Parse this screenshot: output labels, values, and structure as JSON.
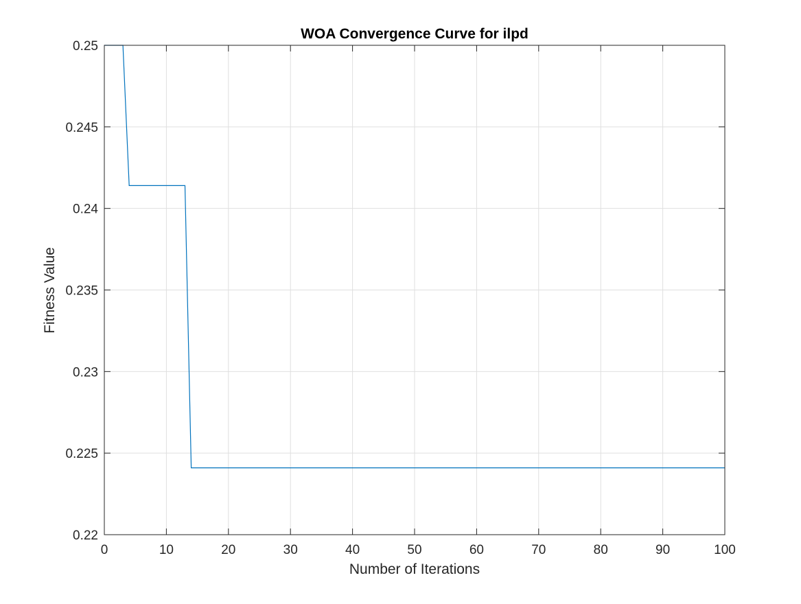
{
  "chart_data": {
    "type": "line",
    "title": "WOA Convergence Curve for ilpd",
    "xlabel": "Number of Iterations",
    "ylabel": "Fitness Value",
    "xlim": [
      0,
      100
    ],
    "ylim": [
      0.22,
      0.25
    ],
    "xticks": [
      0,
      10,
      20,
      30,
      40,
      50,
      60,
      70,
      80,
      90,
      100
    ],
    "xtick_labels": [
      "0",
      "10",
      "20",
      "30",
      "40",
      "50",
      "60",
      "70",
      "80",
      "90",
      "100"
    ],
    "yticks": [
      0.22,
      0.225,
      0.23,
      0.235,
      0.24,
      0.245,
      0.25
    ],
    "ytick_labels": [
      "0.22",
      "0.225",
      "0.23",
      "0.235",
      "0.24",
      "0.245",
      "0.25"
    ],
    "grid": true,
    "series": [
      {
        "color": "#0072BD",
        "x": [
          0,
          3,
          4,
          13,
          14,
          100
        ],
        "y": [
          0.25,
          0.25,
          0.2414,
          0.2414,
          0.2241,
          0.2241
        ]
      }
    ]
  }
}
